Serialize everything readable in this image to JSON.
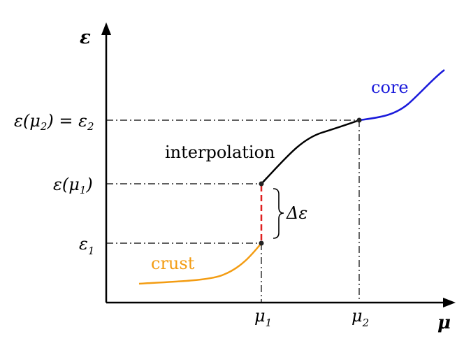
{
  "axes": {
    "y_label": "ε",
    "x_label": "μ"
  },
  "y_ticks": {
    "eps_mu2": {
      "main": "ε(μ",
      "sub": "2",
      "rest": ") = ε",
      "sub2": "2"
    },
    "eps_mu1": {
      "main": "ε(μ",
      "sub": "1",
      "rest": ")"
    },
    "eps1": {
      "main": "ε",
      "sub": "1"
    }
  },
  "x_ticks": {
    "mu1": {
      "main": "μ",
      "sub": "1"
    },
    "mu2": {
      "main": "μ",
      "sub": "2"
    }
  },
  "curves": {
    "crust": {
      "label": "crust",
      "color": "#f39c12"
    },
    "interpolation": {
      "label": "interpolation",
      "color": "#000000"
    },
    "core": {
      "label": "core",
      "color": "#1a1adb"
    }
  },
  "gap": {
    "label": "Δε",
    "color": "#e02020"
  }
}
